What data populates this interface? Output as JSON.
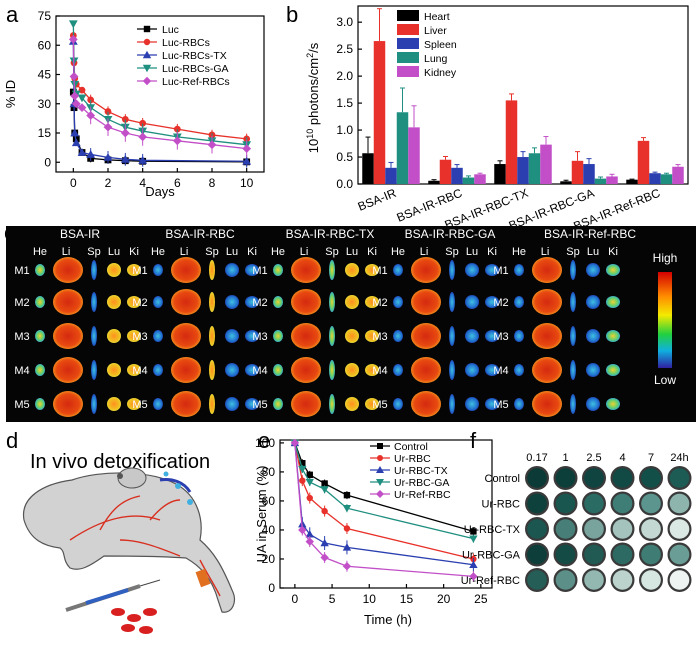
{
  "panels": {
    "a": "a",
    "b": "b",
    "c": "c",
    "d": "d",
    "e": "e",
    "f": "f"
  },
  "chart_data": [
    {
      "id": "a",
      "type": "line",
      "title": "",
      "xlabel": "Days",
      "ylabel": "% ID",
      "xlim": [
        -1,
        11
      ],
      "ylim": [
        -5,
        75
      ],
      "xticks": [
        "0",
        "2",
        "4",
        "6",
        "8",
        "10"
      ],
      "yticks": [
        "0",
        "15",
        "30",
        "45",
        "60",
        "75"
      ],
      "x": [
        0,
        0.04,
        0.08,
        0.17,
        0.5,
        1,
        2,
        3,
        4,
        6,
        8,
        10
      ],
      "series": [
        {
          "name": "Luc",
          "color": "#000000",
          "marker": "square",
          "values": [
            36,
            28,
            15,
            12,
            5,
            2,
            1.2,
            0.8,
            0.5,
            null,
            null,
            0.2
          ]
        },
        {
          "name": "Luc-RBCs",
          "color": "#e8312a",
          "marker": "circle",
          "values": [
            65,
            51,
            43,
            40,
            37,
            32,
            26,
            22,
            20,
            17,
            14,
            12
          ]
        },
        {
          "name": "Luc-RBCs-TX",
          "color": "#2b3fb0",
          "marker": "triangle-up",
          "values": [
            62,
            30,
            15,
            10,
            5,
            4,
            2.5,
            1.5,
            1,
            null,
            null,
            0.5
          ]
        },
        {
          "name": "Luc-RBCs-GA",
          "color": "#1f8f80",
          "marker": "triangle-down",
          "values": [
            71,
            52,
            40,
            35,
            33,
            28,
            22,
            18,
            16,
            13,
            11,
            9
          ]
        },
        {
          "name": "Luc-Ref-RBCs",
          "color": "#c24fc8",
          "marker": "diamond",
          "values": [
            63,
            44,
            34,
            30,
            28,
            24,
            18,
            15,
            13,
            11,
            9,
            7
          ]
        }
      ]
    },
    {
      "id": "b",
      "type": "bar",
      "title": "",
      "xlabel": "",
      "ylabel": "10^10 photons/cm^2/s",
      "ylabel_parts": [
        "10",
        "10",
        " photons/cm",
        "2",
        "/s"
      ],
      "ylim": [
        0,
        3.3
      ],
      "yticks": [
        "0.0",
        "0.5",
        "1.0",
        "1.5",
        "2.0",
        "2.5",
        "3.0"
      ],
      "categories": [
        "BSA-IR",
        "BSA-IR-RBC",
        "BSA-IR-RBC-TX",
        "BSA-IR-RBC-GA",
        "BSA-IR-Ref-RBC"
      ],
      "series": [
        {
          "name": "Heart",
          "color": "#000000",
          "values": [
            0.57,
            0.06,
            0.37,
            0.05,
            0.08
          ],
          "err": [
            0.3,
            0.02,
            0.06,
            0.02,
            0.01
          ]
        },
        {
          "name": "Liver",
          "color": "#e8312a",
          "values": [
            2.65,
            0.45,
            1.55,
            0.43,
            0.8
          ],
          "err": [
            0.6,
            0.06,
            0.12,
            0.17,
            0.06
          ]
        },
        {
          "name": "Spleen",
          "color": "#2b3fb0",
          "values": [
            0.3,
            0.3,
            0.5,
            0.37,
            0.2
          ],
          "err": [
            0.1,
            0.06,
            0.1,
            0.1,
            0.02
          ]
        },
        {
          "name": "Lung",
          "color": "#1f8f80",
          "values": [
            1.33,
            0.12,
            0.57,
            0.1,
            0.18
          ],
          "err": [
            0.45,
            0.03,
            0.1,
            0.03,
            0.02
          ]
        },
        {
          "name": "Kidney",
          "color": "#c24fc8",
          "values": [
            1.05,
            0.18,
            0.73,
            0.14,
            0.32
          ],
          "err": [
            0.4,
            0.02,
            0.15,
            0.04,
            0.04
          ]
        }
      ]
    },
    {
      "id": "c",
      "type": "heatmap",
      "groups": [
        "BSA-IR",
        "BSA-IR-RBC",
        "BSA-IR-RBC-TX",
        "BSA-IR-RBC-GA",
        "BSA-IR-Ref-RBC"
      ],
      "organs": [
        "He",
        "Li",
        "Sp",
        "Lu",
        "Ki"
      ],
      "mice": [
        "M1",
        "M2",
        "M3",
        "M4",
        "M5"
      ],
      "scale_high": "High",
      "scale_low": "Low"
    },
    {
      "id": "e",
      "type": "line",
      "title": "",
      "xlabel": "Time (h)",
      "ylabel": "UA in Serum (%)",
      "xlim": [
        -2,
        26.5
      ],
      "ylim": [
        0,
        102
      ],
      "xticks": [
        "0",
        "5",
        "10",
        "15",
        "20",
        "25"
      ],
      "yticks": [
        "0",
        "20",
        "40",
        "60",
        "80",
        "100"
      ],
      "x": [
        0,
        1,
        2,
        4,
        7,
        24
      ],
      "series": [
        {
          "name": "Control",
          "color": "#000000",
          "marker": "square",
          "values": [
            100,
            86,
            78,
            72,
            64,
            39
          ]
        },
        {
          "name": "Ur-RBC",
          "color": "#e8312a",
          "marker": "circle",
          "values": [
            100,
            74,
            62,
            53,
            41,
            20
          ]
        },
        {
          "name": "Ur-RBC-TX",
          "color": "#2b3fb0",
          "marker": "triangle-up",
          "values": [
            100,
            44,
            37,
            31,
            28,
            16
          ]
        },
        {
          "name": "Ur-RBC-GA",
          "color": "#1f8f80",
          "marker": "triangle-down",
          "values": [
            100,
            82,
            73,
            68,
            55,
            34
          ]
        },
        {
          "name": "Ur-Ref-RBC",
          "color": "#c24fc8",
          "marker": "diamond",
          "values": [
            100,
            40,
            32,
            21,
            15,
            8
          ]
        }
      ]
    },
    {
      "id": "f",
      "type": "table",
      "columns": [
        "0.17",
        "1",
        "2.5",
        "4",
        "7",
        "24h"
      ],
      "rows": [
        "Control",
        "Ur-RBC",
        "Ur-RBC-TX",
        "Ur-RBC-GA",
        "Ur-Ref-RBC"
      ],
      "well_colors": [
        [
          "#0c3a36",
          "#0d3f3a",
          "#0f4440",
          "#114944",
          "#134f49",
          "#1c5c55"
        ],
        [
          "#0f413c",
          "#1a5650",
          "#2a6b64",
          "#3f7e77",
          "#5c958e",
          "#8db4ad"
        ],
        [
          "#1c5650",
          "#477e77",
          "#79a49d",
          "#a4c3bd",
          "#c3d8d2",
          "#dbe9e4"
        ],
        [
          "#0d3e39",
          "#154b45",
          "#205a53",
          "#2d6a63",
          "#3f7c74",
          "#6a9d95"
        ],
        [
          "#245e57",
          "#5c8f88",
          "#93b8b1",
          "#bcd3cd",
          "#d6e6e1",
          "#eef4f1"
        ]
      ]
    }
  ],
  "diagram_d": {
    "title": "In vivo detoxification"
  }
}
